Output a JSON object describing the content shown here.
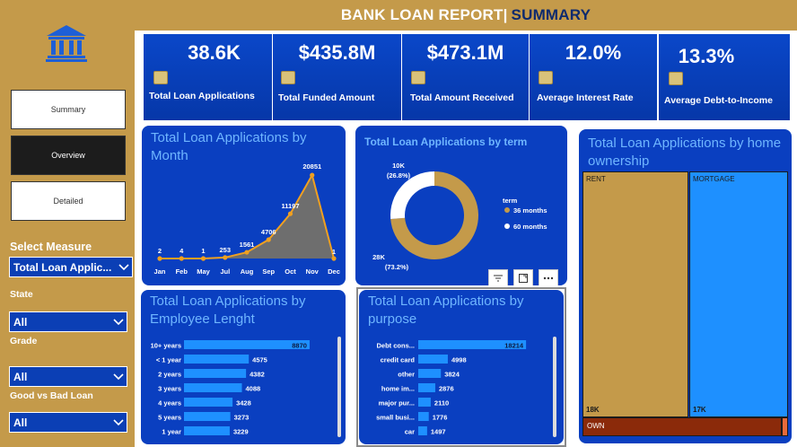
{
  "header": {
    "title_main": "BANK LOAN REPORT|",
    "title_sub": "SUMMARY"
  },
  "sidebar": {
    "nav": [
      {
        "label": "Summary"
      },
      {
        "label": "Overview"
      },
      {
        "label": "Detailed"
      }
    ],
    "select_measure_label": "Select Measure",
    "measure_value": "Total Loan Applic...",
    "filters": [
      {
        "label": "State",
        "value": "All"
      },
      {
        "label": "Grade",
        "value": "All"
      },
      {
        "label": "Good vs Bad Loan",
        "value": "All"
      }
    ]
  },
  "kpis": [
    {
      "value": "38.6K",
      "label": "Total Loan Applications"
    },
    {
      "value": "$435.8M",
      "label": "Total Funded Amount"
    },
    {
      "value": "$473.1M",
      "label": "Total Amount Received"
    },
    {
      "value": "12.0%",
      "label": "Average Interest Rate"
    },
    {
      "value": "13.3%",
      "label": "Average Debt-to-Income"
    }
  ],
  "cards": {
    "month": {
      "title": "Total Loan Applications by Month"
    },
    "term": {
      "title": "Total Loan Applications by term"
    },
    "home": {
      "title": "Total Loan Applications by home ownership"
    },
    "emp": {
      "title": "Total Loan Applications by Employee Lenght"
    },
    "purpose": {
      "title": "Total Loan Applications by purpose"
    }
  },
  "colors": {
    "accent_gold": "#c49a4a",
    "kpi_blue": "#0a47c9",
    "card_blue": "#0a3fc0",
    "bar_blue": "#1e90ff",
    "line_orange": "#f0a020",
    "title_light_blue": "#6fb6ff"
  },
  "chart_data": [
    {
      "type": "area",
      "title": "Total Loan Applications by Month",
      "categories": [
        "Jan",
        "Feb",
        "May",
        "Jul",
        "Aug",
        "Sep",
        "Oct",
        "Nov",
        "Dec"
      ],
      "values": [
        2,
        4,
        1,
        253,
        1561,
        4706,
        11197,
        20851,
        1
      ],
      "value_labels": [
        "2",
        "4",
        "1",
        "253",
        "1561",
        "4706",
        "11197",
        "20851",
        "1"
      ],
      "ylim": [
        0,
        22000
      ]
    },
    {
      "type": "pie",
      "title": "Total Loan Applications by term",
      "legend_title": "term",
      "legend_position": "right",
      "slices": [
        {
          "name": "36 months",
          "value": 28000,
          "label": "28K",
          "pct": "(73.2%)",
          "color": "#c49a4a"
        },
        {
          "name": "60 months",
          "value": 10000,
          "label": "10K",
          "pct": "(26.8%)",
          "color": "#ffffff"
        }
      ]
    },
    {
      "type": "heatmap",
      "title": "Total Loan Applications by home ownership",
      "items": [
        {
          "name": "RENT",
          "value_label": "18K",
          "color": "#c49a4a"
        },
        {
          "name": "MORTGAGE",
          "value_label": "17K",
          "color": "#1e90ff"
        },
        {
          "name": "OWN",
          "value_label": "",
          "color": "#8b2a0a"
        }
      ]
    },
    {
      "type": "bar",
      "title": "Total Loan Applications by Employee Lenght",
      "categories": [
        "10+ years",
        "< 1 year",
        "2 years",
        "3 years",
        "4 years",
        "5 years",
        "1 year"
      ],
      "values": [
        8870,
        4575,
        4382,
        4088,
        3428,
        3273,
        3229
      ],
      "xlim": [
        0,
        9000
      ]
    },
    {
      "type": "bar",
      "title": "Total Loan Applications by purpose",
      "categories": [
        "Debt cons...",
        "credit card",
        "other",
        "home im...",
        "major pur...",
        "small busi...",
        "car"
      ],
      "values": [
        18214,
        4998,
        3824,
        2876,
        2110,
        1776,
        1497
      ],
      "xlim": [
        0,
        18500
      ]
    }
  ]
}
